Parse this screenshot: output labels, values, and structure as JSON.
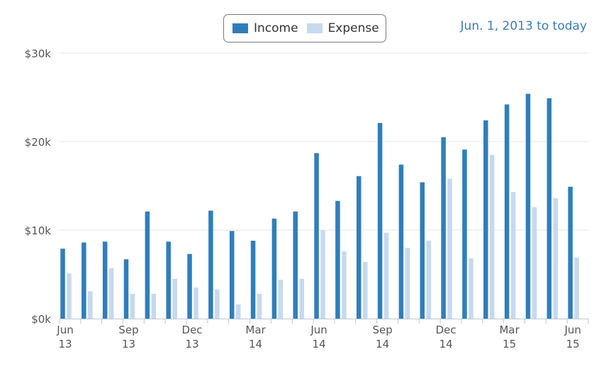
{
  "chart_data": {
    "type": "bar",
    "date_range": "Jun. 1, 2013 to today",
    "categories": [
      "Jun 2013",
      "Jul 2013",
      "Aug 2013",
      "Sep 2013",
      "Oct 2013",
      "Nov 2013",
      "Dec 2013",
      "Jan 2014",
      "Feb 2014",
      "Mar 2014",
      "Apr 2014",
      "May 2014",
      "Jun 2014",
      "Jul 2014",
      "Aug 2014",
      "Sep 2014",
      "Oct 2014",
      "Nov 2014",
      "Dec 2014",
      "Jan 2015",
      "Feb 2015",
      "Mar 2015",
      "Apr 2015",
      "May 2015",
      "Jun 2015"
    ],
    "series": [
      {
        "name": "Income",
        "color": "#2f7ebc",
        "values": [
          7900,
          8600,
          8700,
          6700,
          12100,
          8700,
          7300,
          12200,
          9900,
          8800,
          11300,
          12100,
          18700,
          13300,
          16100,
          22100,
          17400,
          15400,
          20500,
          19100,
          22400,
          24200,
          25400,
          24900,
          14900
        ]
      },
      {
        "name": "Expense",
        "color": "#c6d9ef",
        "values": [
          5100,
          3100,
          5700,
          2800,
          2800,
          4500,
          3500,
          3300,
          1600,
          2800,
          4400,
          4500,
          10000,
          7600,
          6400,
          9700,
          8000,
          8800,
          15800,
          6800,
          18500,
          14300,
          12600,
          13600,
          6900
        ]
      }
    ],
    "y_ticks": [
      "$0k",
      "$10k",
      "$20k",
      "$30k"
    ],
    "y_tick_values": [
      0,
      10000,
      20000,
      30000
    ],
    "ylim": [
      0,
      30000
    ],
    "x_tick_labels": [
      {
        "index": 0,
        "line1": "Jun",
        "line2": "13"
      },
      {
        "index": 3,
        "line1": "Sep",
        "line2": "13"
      },
      {
        "index": 6,
        "line1": "Dec",
        "line2": "13"
      },
      {
        "index": 9,
        "line1": "Mar",
        "line2": "14"
      },
      {
        "index": 12,
        "line1": "Jun",
        "line2": "14"
      },
      {
        "index": 15,
        "line1": "Sep",
        "line2": "14"
      },
      {
        "index": 18,
        "line1": "Dec",
        "line2": "14"
      },
      {
        "index": 21,
        "line1": "Mar",
        "line2": "15"
      },
      {
        "index": 24,
        "line1": "Jun",
        "line2": "15"
      }
    ],
    "grid": true,
    "legend": "top-center"
  }
}
